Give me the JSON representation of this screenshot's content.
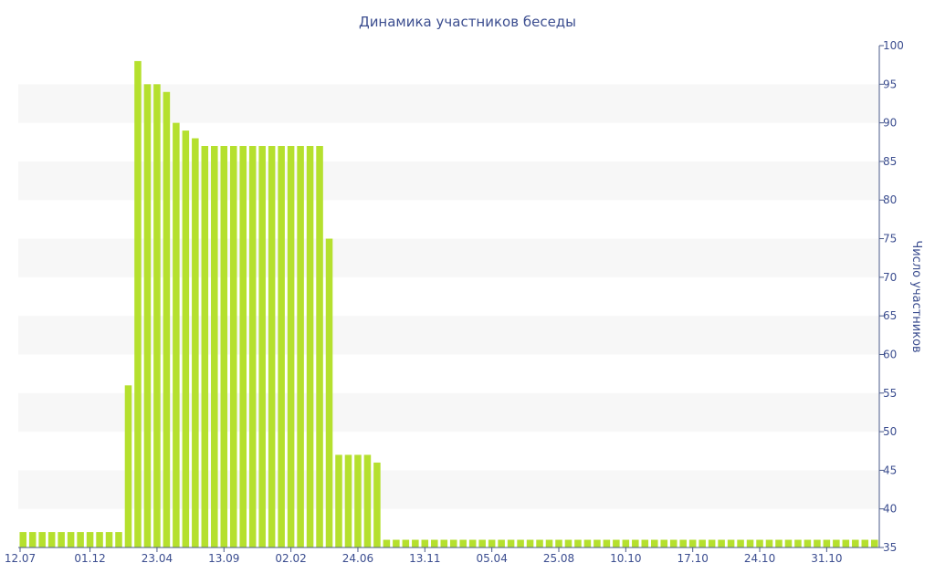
{
  "chart_data": {
    "type": "bar",
    "title": "Динамика участников беседы",
    "ylabel": "Число участников",
    "xlabel": "",
    "ylim": [
      35,
      100
    ],
    "yticks": [
      35,
      40,
      45,
      50,
      55,
      60,
      65,
      70,
      75,
      80,
      85,
      90,
      95,
      100
    ],
    "y_axis_position": "right",
    "grid": "alternating horizontal bands",
    "legend": "none",
    "colors": {
      "bar": "#b5e02e",
      "band": "#f7f7f7",
      "text": "#3b4d8f",
      "axis": "#4a5a8a"
    },
    "x_tick_labels": [
      {
        "index": 0,
        "label": "12.07"
      },
      {
        "index": 7,
        "label": "01.12"
      },
      {
        "index": 14,
        "label": "23.04"
      },
      {
        "index": 21,
        "label": "13.09"
      },
      {
        "index": 28,
        "label": "02.02"
      },
      {
        "index": 35,
        "label": "24.06"
      },
      {
        "index": 42,
        "label": "13.11"
      },
      {
        "index": 49,
        "label": "05.04"
      },
      {
        "index": 56,
        "label": "25.08"
      },
      {
        "index": 63,
        "label": "10.10"
      },
      {
        "index": 70,
        "label": "17.10"
      },
      {
        "index": 77,
        "label": "24.10"
      },
      {
        "index": 84,
        "label": "31.10"
      }
    ],
    "values": [
      37,
      37,
      37,
      37,
      37,
      37,
      37,
      37,
      37,
      37,
      37,
      56,
      98,
      95,
      95,
      94,
      90,
      89,
      88,
      87,
      87,
      87,
      87,
      87,
      87,
      87,
      87,
      87,
      87,
      87,
      87,
      87,
      75,
      47,
      47,
      47,
      47,
      46,
      36,
      36,
      36,
      36,
      36,
      36,
      36,
      36,
      36,
      36,
      36,
      36,
      36,
      36,
      36,
      36,
      36,
      36,
      36,
      36,
      36,
      36,
      36,
      36,
      36,
      36,
      36,
      36,
      36,
      36,
      36,
      36,
      36,
      36,
      36,
      36,
      36,
      36,
      36,
      36,
      36,
      36,
      36,
      36,
      36,
      36,
      36,
      36,
      36,
      36,
      36,
      36
    ]
  }
}
